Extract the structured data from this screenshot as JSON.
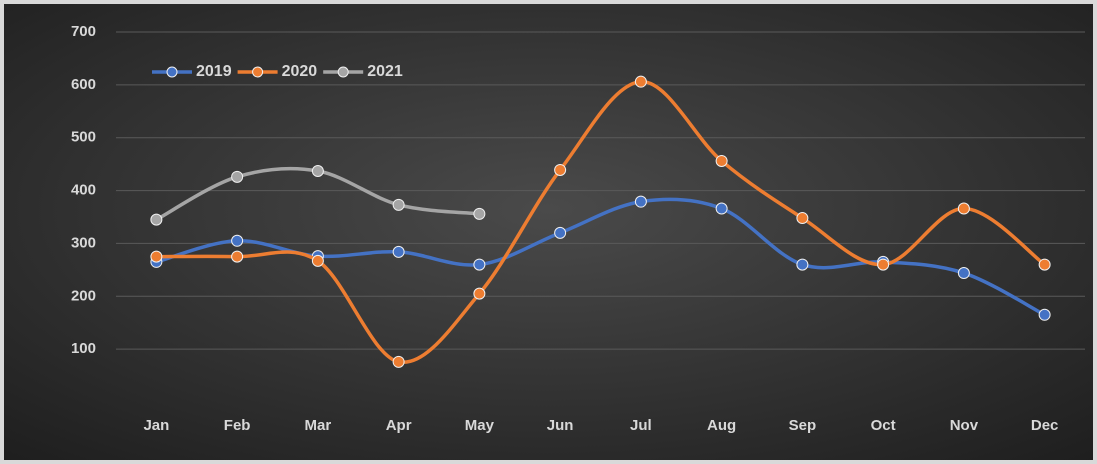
{
  "chart_data": {
    "type": "line",
    "categories": [
      "Jan",
      "Feb",
      "Mar",
      "Apr",
      "May",
      "Jun",
      "Jul",
      "Aug",
      "Sep",
      "Oct",
      "Nov",
      "Dec"
    ],
    "series": [
      {
        "name": "2019",
        "color": "#4472c4",
        "values": [
          265,
          305,
          276,
          284,
          260,
          320,
          379,
          366,
          260,
          265,
          244,
          165
        ]
      },
      {
        "name": "2020",
        "color": "#ed7d31",
        "values": [
          275,
          275,
          267,
          76,
          205,
          439,
          606,
          456,
          348,
          260,
          366,
          260
        ]
      },
      {
        "name": "2021",
        "color": "#a5a5a5",
        "values": [
          345,
          426,
          437,
          373,
          356,
          null,
          null,
          null,
          null,
          null,
          null,
          null
        ]
      }
    ],
    "ylim": [
      0,
      700
    ],
    "yticks": [
      100,
      200,
      300,
      400,
      500,
      600,
      700
    ],
    "grid": true,
    "legend": "top-left"
  }
}
